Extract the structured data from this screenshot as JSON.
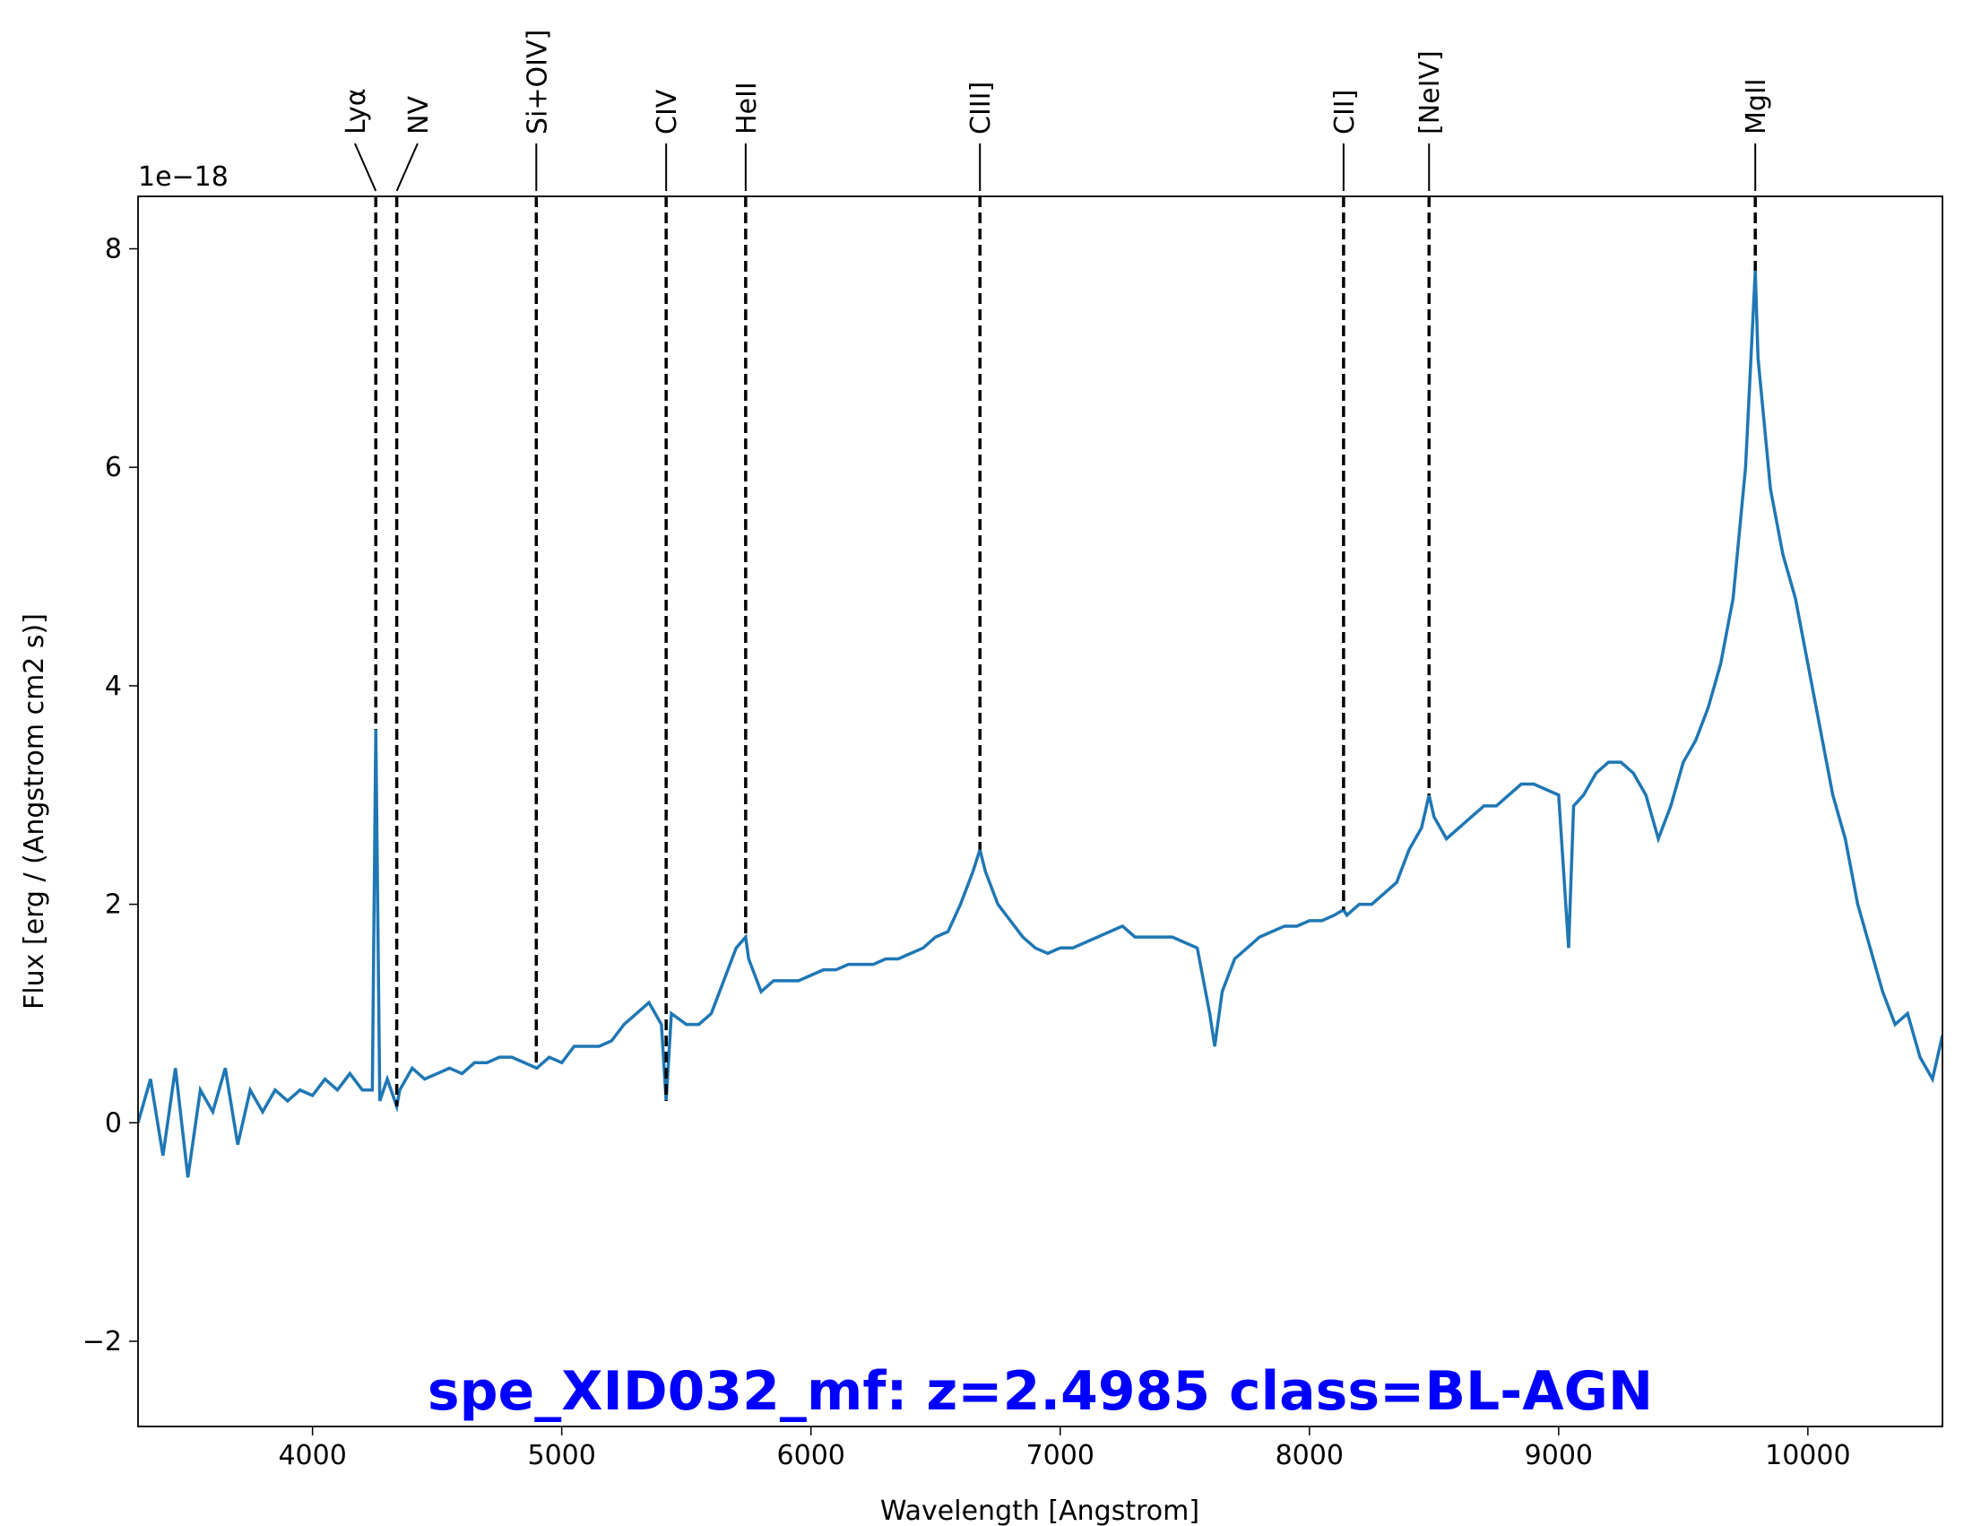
{
  "chart_data": {
    "type": "line",
    "title": "spe_XID032_mf: z=2.4985 class=BL-AGN",
    "title_color": "#0000ff",
    "xlabel": "Wavelength [Angstrom]",
    "ylabel": "Flux [erg / (Angstrom cm2 s)]",
    "y_offset_label": "1e−18",
    "xlim": [
      3300,
      10540
    ],
    "ylim": [
      -2.78,
      8.48
    ],
    "xticks": [
      4000,
      5000,
      6000,
      7000,
      8000,
      9000,
      10000
    ],
    "yticks": [
      {
        "value": -2,
        "label": "−2"
      },
      0,
      2,
      4,
      6,
      8
    ],
    "x": [
      3300,
      3350,
      3400,
      3450,
      3500,
      3550,
      3600,
      3650,
      3700,
      3750,
      3800,
      3850,
      3900,
      3950,
      4000,
      4050,
      4100,
      4150,
      4200,
      4240,
      4254,
      4270,
      4300,
      4338,
      4350,
      4400,
      4450,
      4500,
      4550,
      4600,
      4650,
      4700,
      4750,
      4800,
      4850,
      4900,
      4950,
      5000,
      5050,
      5100,
      5150,
      5200,
      5250,
      5300,
      5350,
      5400,
      5419,
      5440,
      5500,
      5550,
      5600,
      5650,
      5700,
      5738,
      5750,
      5800,
      5850,
      5900,
      5950,
      6000,
      6050,
      6100,
      6150,
      6200,
      6250,
      6300,
      6350,
      6400,
      6450,
      6500,
      6550,
      6600,
      6650,
      6678,
      6700,
      6750,
      6800,
      6850,
      6900,
      6950,
      7000,
      7050,
      7100,
      7150,
      7200,
      7250,
      7300,
      7350,
      7400,
      7450,
      7500,
      7550,
      7600,
      7620,
      7650,
      7700,
      7750,
      7800,
      7850,
      7900,
      7950,
      8000,
      8050,
      8100,
      8137,
      8150,
      8200,
      8250,
      8300,
      8350,
      8400,
      8450,
      8480,
      8500,
      8550,
      8600,
      8650,
      8700,
      8750,
      8800,
      8850,
      8900,
      8950,
      9000,
      9040,
      9060,
      9100,
      9150,
      9200,
      9250,
      9300,
      9350,
      9400,
      9450,
      9500,
      9550,
      9600,
      9650,
      9700,
      9750,
      9789,
      9800,
      9850,
      9900,
      9950,
      10000,
      10050,
      10100,
      10150,
      10200,
      10250,
      10300,
      10350,
      10400,
      10450,
      10500,
      10540
    ],
    "series": [
      {
        "color": "#1f77b4",
        "values": [
          0.0,
          0.4,
          -0.3,
          0.5,
          -0.5,
          0.3,
          0.1,
          0.5,
          -0.2,
          0.3,
          0.1,
          0.3,
          0.2,
          0.3,
          0.25,
          0.4,
          0.3,
          0.45,
          0.3,
          0.3,
          3.6,
          0.2,
          0.4,
          0.15,
          0.3,
          0.5,
          0.4,
          0.45,
          0.5,
          0.45,
          0.55,
          0.55,
          0.6,
          0.6,
          0.55,
          0.5,
          0.6,
          0.55,
          0.7,
          0.7,
          0.7,
          0.75,
          0.9,
          1.0,
          1.1,
          0.9,
          0.2,
          1.0,
          0.9,
          0.9,
          1.0,
          1.3,
          1.6,
          1.7,
          1.5,
          1.2,
          1.3,
          1.3,
          1.3,
          1.35,
          1.4,
          1.4,
          1.45,
          1.45,
          1.45,
          1.5,
          1.5,
          1.55,
          1.6,
          1.7,
          1.75,
          2.0,
          2.3,
          2.5,
          2.3,
          2.0,
          1.85,
          1.7,
          1.6,
          1.55,
          1.6,
          1.6,
          1.65,
          1.7,
          1.75,
          1.8,
          1.7,
          1.7,
          1.7,
          1.7,
          1.65,
          1.6,
          1.0,
          0.7,
          1.2,
          1.5,
          1.6,
          1.7,
          1.75,
          1.8,
          1.8,
          1.85,
          1.85,
          1.9,
          1.95,
          1.9,
          2.0,
          2.0,
          2.1,
          2.2,
          2.5,
          2.7,
          3.0,
          2.8,
          2.6,
          2.7,
          2.8,
          2.9,
          2.9,
          3.0,
          3.1,
          3.1,
          3.05,
          3.0,
          1.6,
          2.9,
          3.0,
          3.2,
          3.3,
          3.3,
          3.2,
          3.0,
          2.6,
          2.9,
          3.3,
          3.5,
          3.8,
          4.2,
          4.8,
          6.0,
          7.8,
          7.0,
          5.8,
          5.2,
          4.8,
          4.2,
          3.6,
          3.0,
          2.6,
          2.0,
          1.6,
          1.2,
          0.9,
          1.0,
          0.6,
          0.4,
          0.8
        ]
      }
    ],
    "lines": [
      {
        "label": "Lyα",
        "wavelength": 4254
      },
      {
        "label": "NV",
        "wavelength": 4338
      },
      {
        "label": "Si+OIV]",
        "wavelength": 4898
      },
      {
        "label": "CIV",
        "wavelength": 5419
      },
      {
        "label": "HeII",
        "wavelength": 5738
      },
      {
        "label": "CIII]",
        "wavelength": 6678
      },
      {
        "label": "CII]",
        "wavelength": 8137
      },
      {
        "label": "[NeIV]",
        "wavelength": 8480
      },
      {
        "label": "MgII",
        "wavelength": 9789
      }
    ]
  }
}
